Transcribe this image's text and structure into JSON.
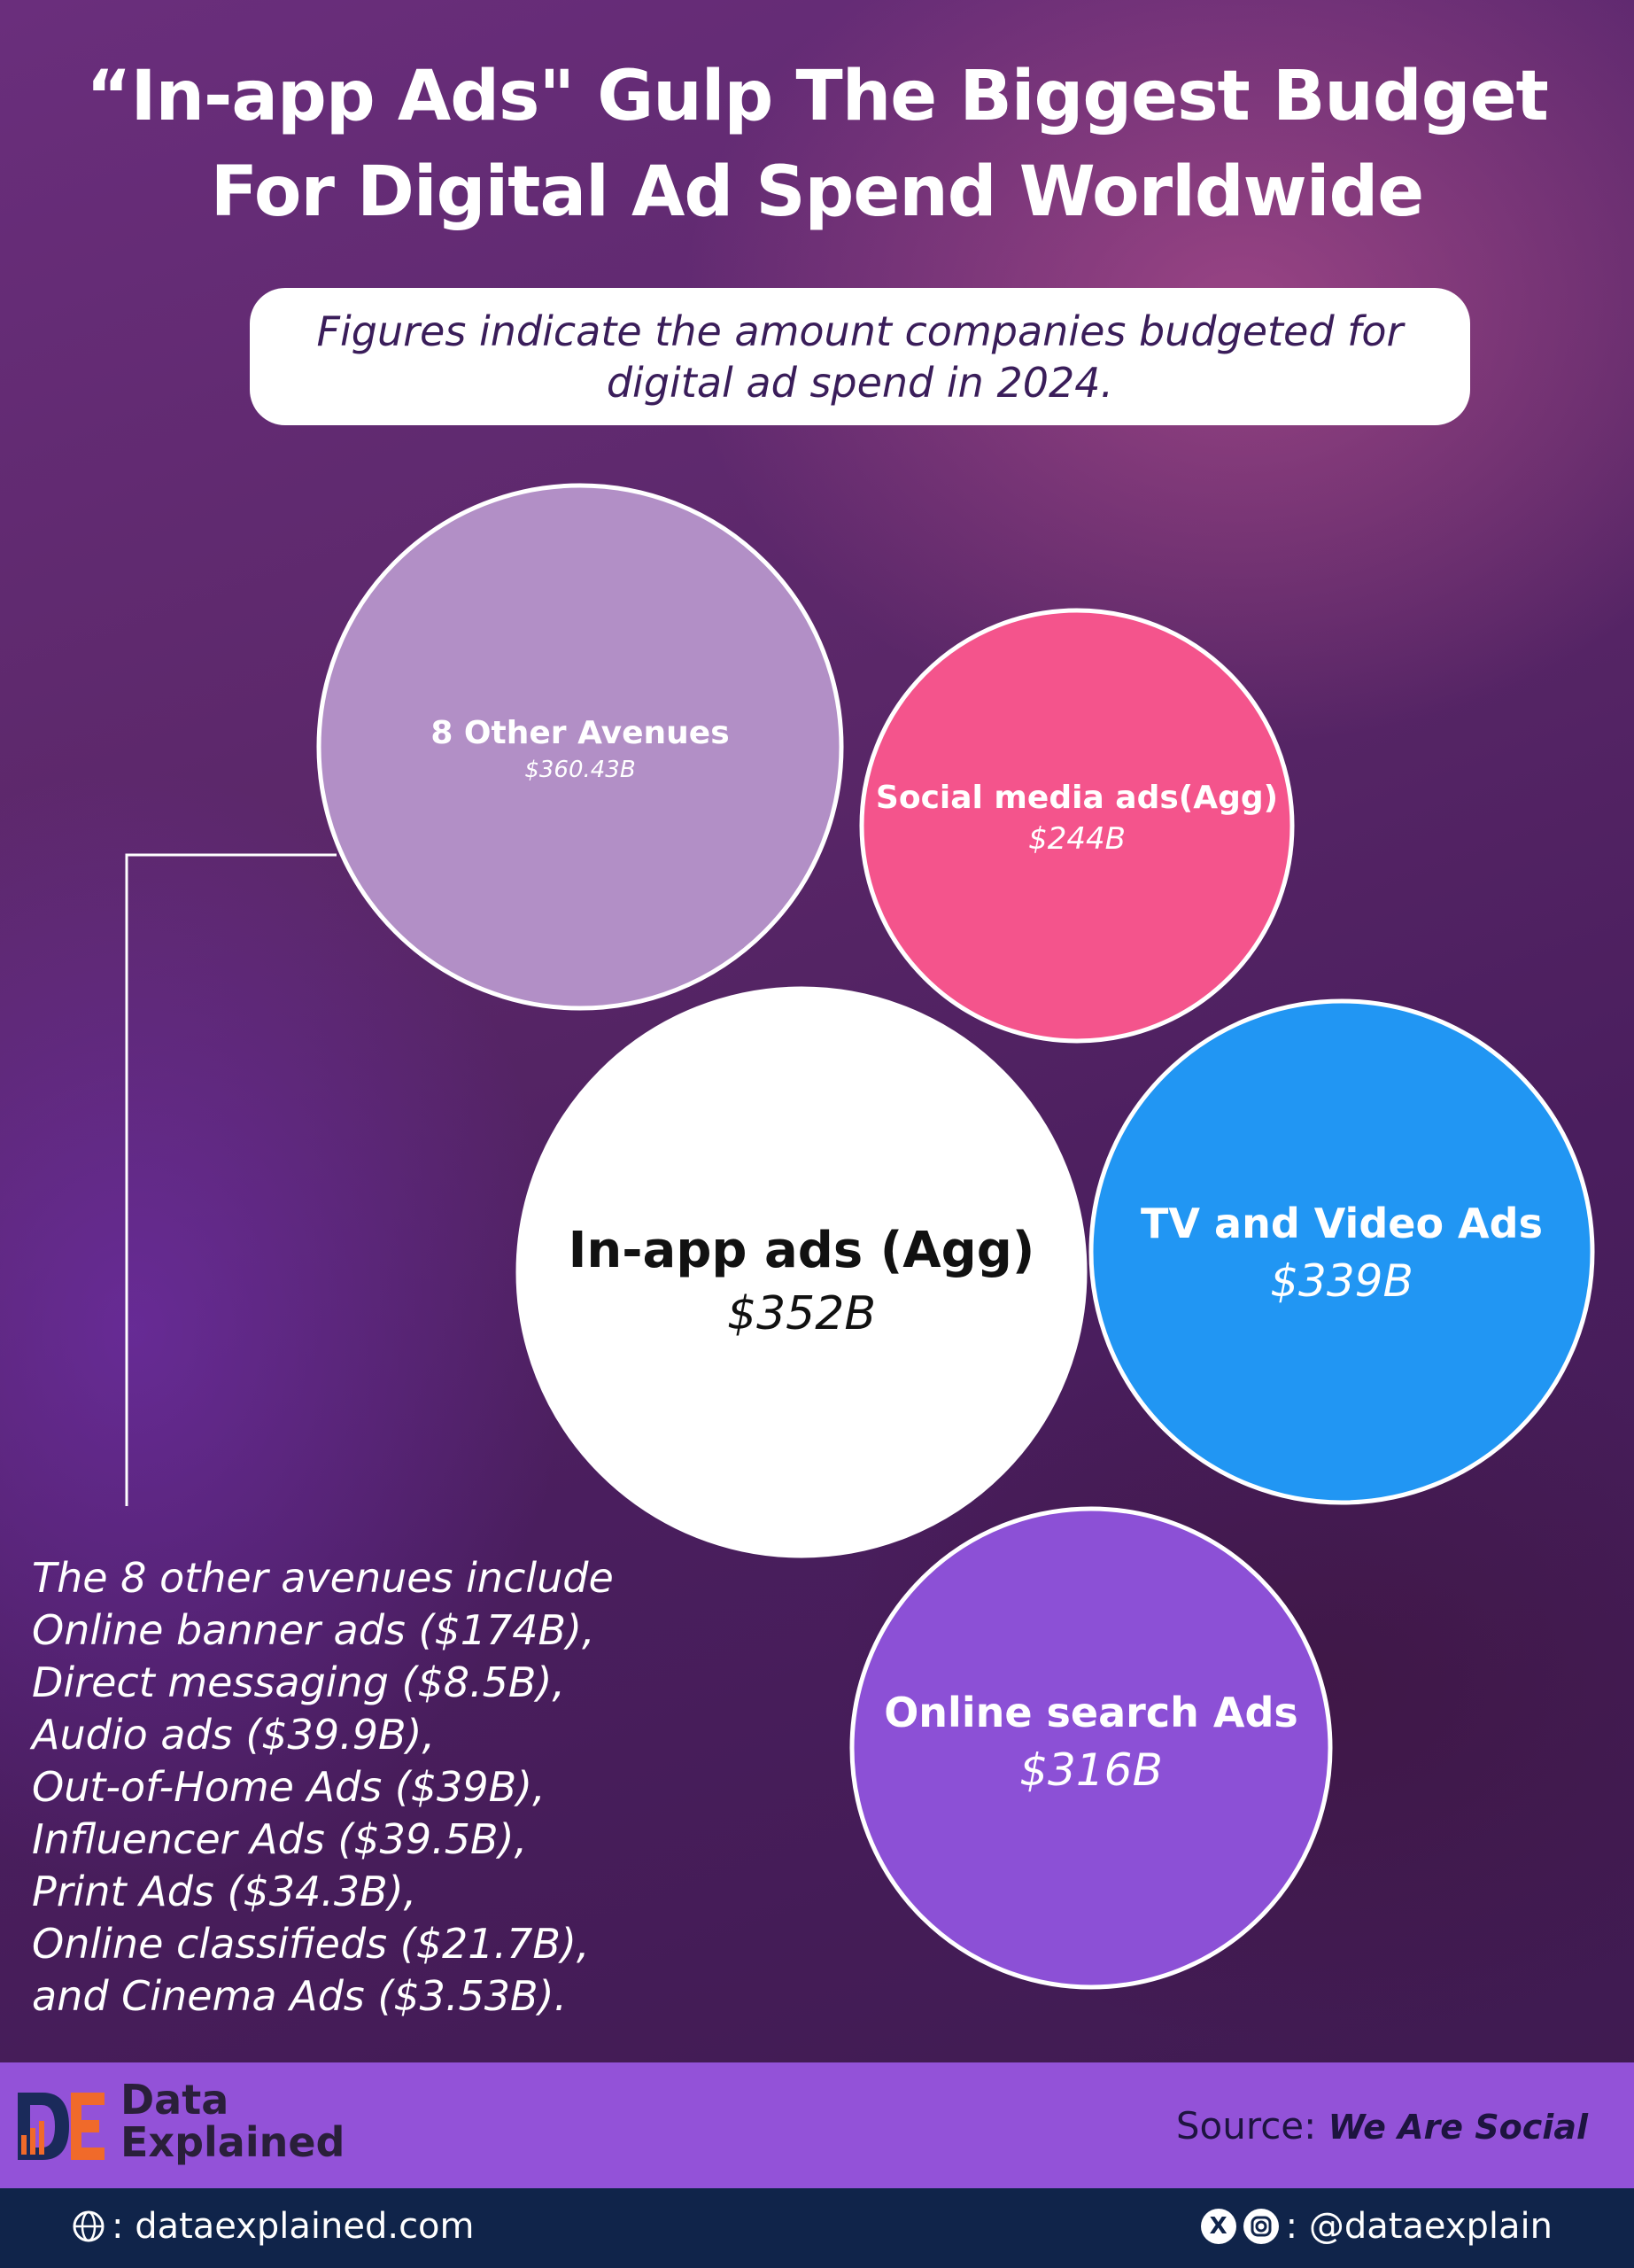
{
  "title_line1": "“In-app Ads\" Gulp The Biggest Budget",
  "title_line2": "For Digital Ad Spend Worldwide",
  "subtitle_line1": "Figures indicate the amount companies budgeted for",
  "subtitle_line2": "digital ad spend in 2024.",
  "chart_data": {
    "type": "bubble",
    "title": "“In-app Ads\" Gulp The Biggest Budget For Digital Ad Spend Worldwide",
    "subtitle": "Figures indicate the amount companies budgeted for digital ad spend in 2024.",
    "unit": "USD billions",
    "items": [
      {
        "label": "8 Other Avenues",
        "value_label": "$360.43B",
        "value": 360.43,
        "color": "#b28fc6"
      },
      {
        "label": "Social media ads(Agg)",
        "value_label": "$244B",
        "value": 244,
        "color": "#f4548c"
      },
      {
        "label": "In-app ads (Agg)",
        "value_label": "$352B",
        "value": 352,
        "color": "#ffffff"
      },
      {
        "label": "TV and Video Ads",
        "value_label": "$339B",
        "value": 339,
        "color": "#2196f3"
      },
      {
        "label": "Online search Ads",
        "value_label": "$316B",
        "value": 316,
        "color": "#8c50d6"
      }
    ],
    "other_avenues": [
      {
        "label": "Online banner ads",
        "value": 174
      },
      {
        "label": "Direct messaging",
        "value": 8.5
      },
      {
        "label": "Audio ads",
        "value": 39.9
      },
      {
        "label": "Out-of-Home Ads",
        "value": 39
      },
      {
        "label": "Influencer Ads",
        "value": 39.5
      },
      {
        "label": "Print Ads",
        "value": 34.3
      },
      {
        "label": "Online classifieds",
        "value": 21.7
      },
      {
        "label": "Cinema Ads",
        "value": 3.53
      }
    ]
  },
  "note_lines": [
    "The 8 other avenues include",
    "Online banner ads ($174B),",
    "Direct messaging ($8.5B),",
    "Audio ads ($39.9B),",
    "Out-of-Home Ads ($39B),",
    "Influencer Ads ($39.5B),",
    "Print Ads ($34.3B),",
    "Online classifieds ($21.7B),",
    "and Cinema Ads ($3.53B)."
  ],
  "brand": {
    "line1": "Data",
    "line2": "Explained"
  },
  "source": {
    "label": "Source:",
    "name": "We Are Social"
  },
  "footer": {
    "website": ": dataexplained.com",
    "handle": ": @dataexplain"
  },
  "colors": {
    "accent": "#9352d8",
    "bottom_bar": "#10244a",
    "logo_orange": "#f06a2a",
    "logo_navy": "#1a2a5a"
  },
  "icons": {
    "website": "globe-icon",
    "x": "x-logo-icon",
    "instagram": "instagram-icon"
  }
}
